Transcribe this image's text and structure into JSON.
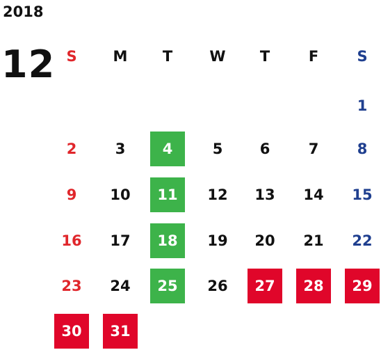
{
  "year": "2018",
  "month": "12",
  "colors": {
    "sunday": "#e0262b",
    "saturday": "#1f3f8f",
    "weekday": "#111111",
    "green_highlight": "#3db34a",
    "red_highlight": "#e0062a",
    "highlight_text": "#ffffff"
  },
  "weekdays": [
    {
      "label": "S",
      "type": "sun"
    },
    {
      "label": "M",
      "type": "weekday"
    },
    {
      "label": "T",
      "type": "weekday"
    },
    {
      "label": "W",
      "type": "weekday"
    },
    {
      "label": "T",
      "type": "weekday"
    },
    {
      "label": "F",
      "type": "weekday"
    },
    {
      "label": "S",
      "type": "sat"
    }
  ],
  "weeks": [
    [
      {
        "day": "",
        "type": "sun"
      },
      {
        "day": "",
        "type": "weekday"
      },
      {
        "day": "",
        "type": "weekday"
      },
      {
        "day": "",
        "type": "weekday"
      },
      {
        "day": "",
        "type": "weekday"
      },
      {
        "day": "",
        "type": "weekday"
      },
      {
        "day": "1",
        "type": "sat"
      }
    ],
    [
      {
        "day": "2",
        "type": "sun"
      },
      {
        "day": "3",
        "type": "weekday"
      },
      {
        "day": "4",
        "type": "weekday",
        "highlight": "green"
      },
      {
        "day": "5",
        "type": "weekday"
      },
      {
        "day": "6",
        "type": "weekday"
      },
      {
        "day": "7",
        "type": "weekday"
      },
      {
        "day": "8",
        "type": "sat"
      }
    ],
    [
      {
        "day": "9",
        "type": "sun"
      },
      {
        "day": "10",
        "type": "weekday"
      },
      {
        "day": "11",
        "type": "weekday",
        "highlight": "green"
      },
      {
        "day": "12",
        "type": "weekday"
      },
      {
        "day": "13",
        "type": "weekday"
      },
      {
        "day": "14",
        "type": "weekday"
      },
      {
        "day": "15",
        "type": "sat"
      }
    ],
    [
      {
        "day": "16",
        "type": "sun"
      },
      {
        "day": "17",
        "type": "weekday"
      },
      {
        "day": "18",
        "type": "weekday",
        "highlight": "green"
      },
      {
        "day": "19",
        "type": "weekday"
      },
      {
        "day": "20",
        "type": "weekday"
      },
      {
        "day": "21",
        "type": "weekday"
      },
      {
        "day": "22",
        "type": "sat"
      }
    ],
    [
      {
        "day": "23",
        "type": "sun"
      },
      {
        "day": "24",
        "type": "weekday"
      },
      {
        "day": "25",
        "type": "weekday",
        "highlight": "green"
      },
      {
        "day": "26",
        "type": "weekday"
      },
      {
        "day": "27",
        "type": "weekday",
        "highlight": "red"
      },
      {
        "day": "28",
        "type": "weekday",
        "highlight": "red"
      },
      {
        "day": "29",
        "type": "sat",
        "highlight": "red"
      }
    ],
    [
      {
        "day": "30",
        "type": "sun",
        "highlight": "red"
      },
      {
        "day": "31",
        "type": "weekday",
        "highlight": "red"
      },
      {
        "day": "",
        "type": "weekday"
      },
      {
        "day": "",
        "type": "weekday"
      },
      {
        "day": "",
        "type": "weekday"
      },
      {
        "day": "",
        "type": "weekday"
      },
      {
        "day": "",
        "type": "sat"
      }
    ]
  ]
}
